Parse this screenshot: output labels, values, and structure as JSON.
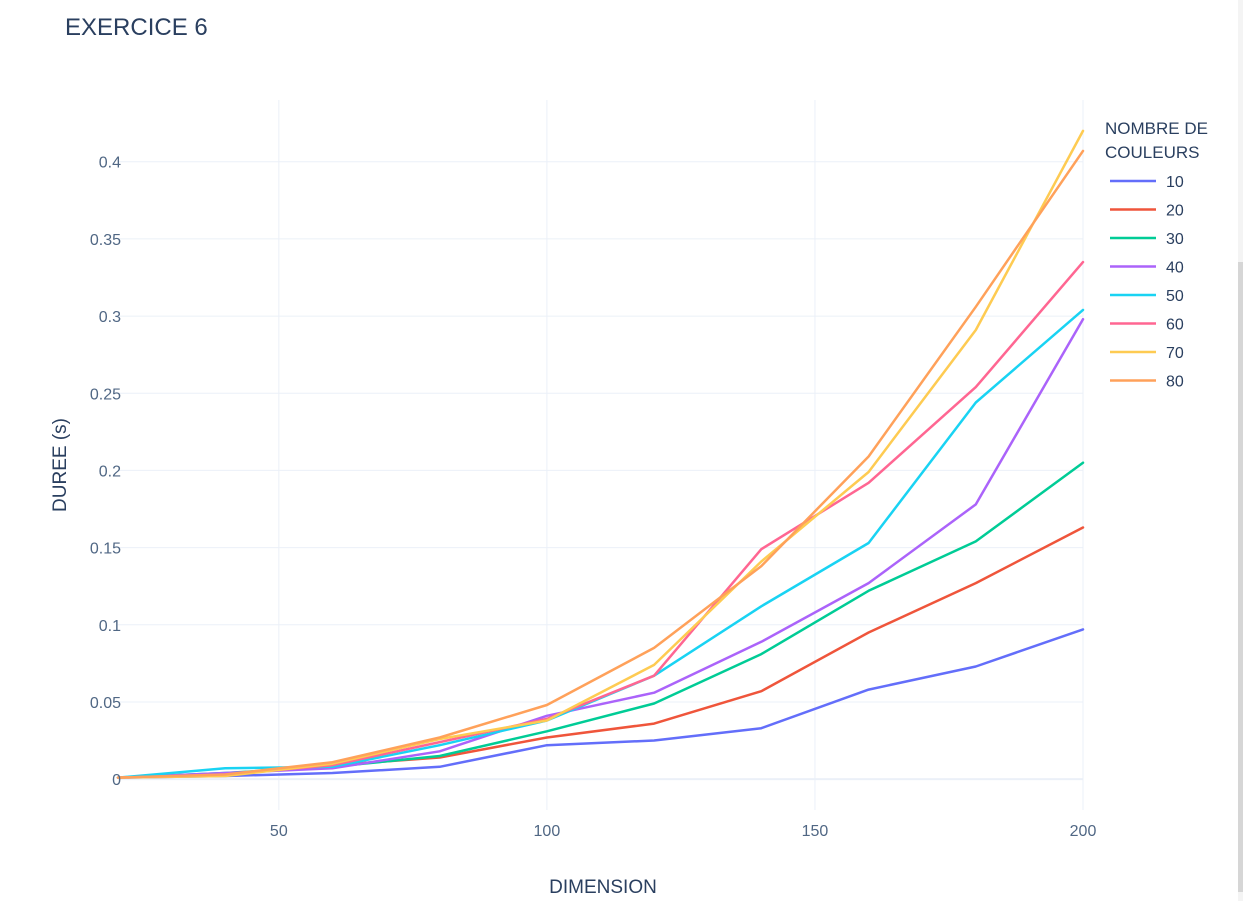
{
  "chart_data": {
    "type": "line",
    "title": "EXERCICE 6",
    "xlabel": "DIMENSION",
    "ylabel": "DUREE (s)",
    "xlim": [
      20,
      200
    ],
    "ylim": [
      -0.02,
      0.44
    ],
    "x_ticks": [
      50,
      100,
      150,
      200
    ],
    "y_ticks": [
      0,
      0.05,
      0.1,
      0.15,
      0.2,
      0.25,
      0.3,
      0.35,
      0.4
    ],
    "y_tick_labels": [
      "0",
      "0.05",
      "0.1",
      "0.15",
      "0.2",
      "0.25",
      "0.3",
      "0.35",
      "0.4"
    ],
    "grid": true,
    "legend": {
      "title_lines": [
        "NOMBRE DE",
        "COULEURS"
      ],
      "position": "top-right"
    },
    "x": [
      20,
      40,
      60,
      80,
      100,
      120,
      140,
      160,
      180,
      200
    ],
    "series": [
      {
        "name": "10",
        "color": "#636efa",
        "values": [
          0.001,
          0.002,
          0.004,
          0.008,
          0.022,
          0.025,
          0.033,
          0.058,
          0.073,
          0.097
        ]
      },
      {
        "name": "20",
        "color": "#ef553b",
        "values": [
          0.001,
          0.003,
          0.009,
          0.014,
          0.027,
          0.036,
          0.057,
          0.095,
          0.127,
          0.163
        ]
      },
      {
        "name": "30",
        "color": "#00cc96",
        "values": [
          0.001,
          0.004,
          0.008,
          0.015,
          0.031,
          0.049,
          0.081,
          0.122,
          0.154,
          0.205
        ]
      },
      {
        "name": "40",
        "color": "#ab63fa",
        "values": [
          0.001,
          0.004,
          0.007,
          0.018,
          0.041,
          0.056,
          0.089,
          0.127,
          0.178,
          0.298
        ]
      },
      {
        "name": "50",
        "color": "#19d3f3",
        "values": [
          0.001,
          0.007,
          0.008,
          0.022,
          0.038,
          0.067,
          0.112,
          0.153,
          0.244,
          0.304
        ]
      },
      {
        "name": "60",
        "color": "#ff6692",
        "values": [
          0.001,
          0.003,
          0.009,
          0.024,
          0.039,
          0.067,
          0.149,
          0.192,
          0.254,
          0.335
        ]
      },
      {
        "name": "70",
        "color": "#fecb52",
        "values": [
          0.001,
          0.002,
          0.01,
          0.026,
          0.038,
          0.074,
          0.141,
          0.199,
          0.291,
          0.42
        ]
      },
      {
        "name": "80",
        "color": "#ffa15a",
        "values": [
          0.001,
          0.003,
          0.011,
          0.027,
          0.048,
          0.085,
          0.138,
          0.209,
          0.306,
          0.407
        ]
      }
    ]
  }
}
